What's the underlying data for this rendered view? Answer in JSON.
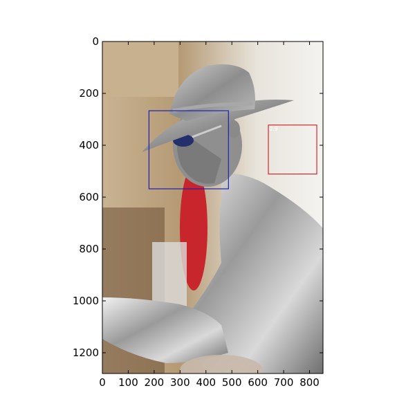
{
  "chart_data": {
    "type": "image",
    "title": "",
    "xlabel": "",
    "ylabel": "",
    "image_size": {
      "width": 852,
      "height": 1280
    },
    "xlim": [
      0,
      852
    ],
    "ylim": [
      1280,
      0
    ],
    "xticks": [
      0,
      100,
      200,
      300,
      400,
      500,
      600,
      700,
      800
    ],
    "yticks": [
      0,
      200,
      400,
      600,
      800,
      1000,
      1200
    ],
    "grid": false,
    "image_description": "Silver-painted street performer in hat and sunglasses, profile view",
    "boxes": [
      {
        "label": "",
        "color": "#1f1fb4",
        "x0": 180,
        "y0": 267,
        "x1": 487,
        "y1": 568
      },
      {
        "label": "0.9",
        "color": "#d62728",
        "x0": 641,
        "y0": 322,
        "x1": 828,
        "y1": 511
      }
    ]
  }
}
